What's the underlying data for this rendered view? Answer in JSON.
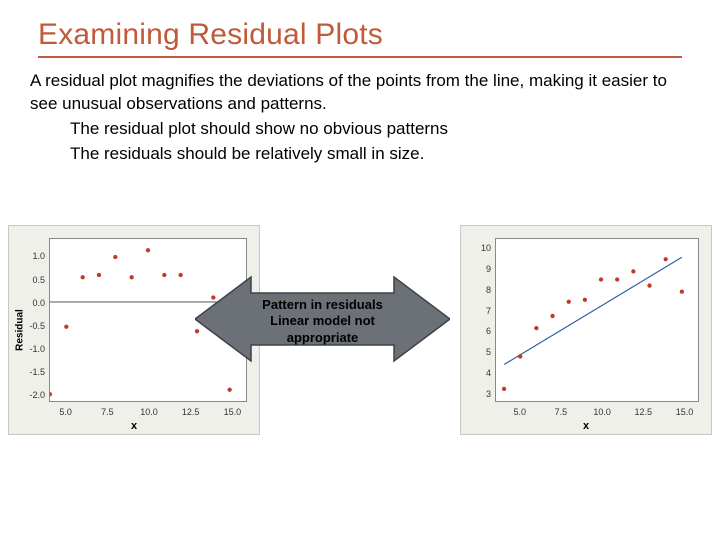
{
  "title": {
    "text": "Examining Residual Plots",
    "color": "#c05a3a",
    "underline_color": "#c05a3a",
    "fontsize": 30
  },
  "body": {
    "p1": "A residual plot magnifies the deviations of the points from the line, making it easier to see unusual observations and patterns.",
    "li1": "The residual plot should show no obvious patterns",
    "li2": "The residuals should be relatively small in size.",
    "fontsize": 17,
    "text_color": "#000000"
  },
  "callout": {
    "line1": "Pattern in residuals",
    "line2": "Linear model not",
    "line3": "appropriate",
    "fill": "#6b7176",
    "stroke": "#3d4348",
    "fontsize": 13
  },
  "chart_left": {
    "type": "scatter",
    "background_color": "#f0f0ea",
    "plot_bg": "#ffffff",
    "border_color": "#888888",
    "xlabel": "x",
    "ylabel": "Residual",
    "label_fontsize": 10,
    "xlim": [
      4,
      16
    ],
    "ylim": [
      -2.2,
      1.4
    ],
    "xticks": [
      5.0,
      7.5,
      10.0,
      12.5,
      15.0
    ],
    "yticks": [
      -2.0,
      -1.5,
      -1.0,
      -0.5,
      0.0,
      0.5,
      1.0
    ],
    "zero_line_y": 0,
    "zero_line_color": "#555555",
    "point_color": "#c0392b",
    "point_radius": 2.2,
    "points": [
      {
        "x": 4.0,
        "y": -2.05
      },
      {
        "x": 5.0,
        "y": -0.55
      },
      {
        "x": 6.0,
        "y": 0.55
      },
      {
        "x": 7.0,
        "y": 0.6
      },
      {
        "x": 8.0,
        "y": 1.0
      },
      {
        "x": 9.0,
        "y": 0.55
      },
      {
        "x": 10.0,
        "y": 1.15
      },
      {
        "x": 11.0,
        "y": 0.6
      },
      {
        "x": 12.0,
        "y": 0.6
      },
      {
        "x": 13.0,
        "y": -0.65
      },
      {
        "x": 14.0,
        "y": 0.1
      },
      {
        "x": 15.0,
        "y": -1.95
      }
    ]
  },
  "chart_right": {
    "type": "scatter",
    "background_color": "#f0f0ea",
    "plot_bg": "#ffffff",
    "border_color": "#888888",
    "xlabel": "x",
    "label_fontsize": 10,
    "xlim": [
      3.5,
      16
    ],
    "ylim": [
      2.5,
      10.5
    ],
    "xticks": [
      5.0,
      7.5,
      10.0,
      12.5,
      15.0
    ],
    "yticks": [
      3,
      4,
      5,
      6,
      7,
      8,
      9,
      10
    ],
    "trend_line": {
      "x1": 4,
      "y1": 4.3,
      "x2": 15,
      "y2": 9.6,
      "color": "#2e5fa3",
      "width": 1.2
    },
    "point_color": "#c0392b",
    "point_radius": 2.2,
    "points": [
      {
        "x": 4.0,
        "y": 3.1
      },
      {
        "x": 5.0,
        "y": 4.7
      },
      {
        "x": 6.0,
        "y": 6.1
      },
      {
        "x": 7.0,
        "y": 6.7
      },
      {
        "x": 8.0,
        "y": 7.4
      },
      {
        "x": 9.0,
        "y": 7.5
      },
      {
        "x": 10.0,
        "y": 8.5
      },
      {
        "x": 11.0,
        "y": 8.5
      },
      {
        "x": 12.0,
        "y": 8.9
      },
      {
        "x": 13.0,
        "y": 8.2
      },
      {
        "x": 14.0,
        "y": 9.5
      },
      {
        "x": 15.0,
        "y": 7.9
      }
    ]
  }
}
